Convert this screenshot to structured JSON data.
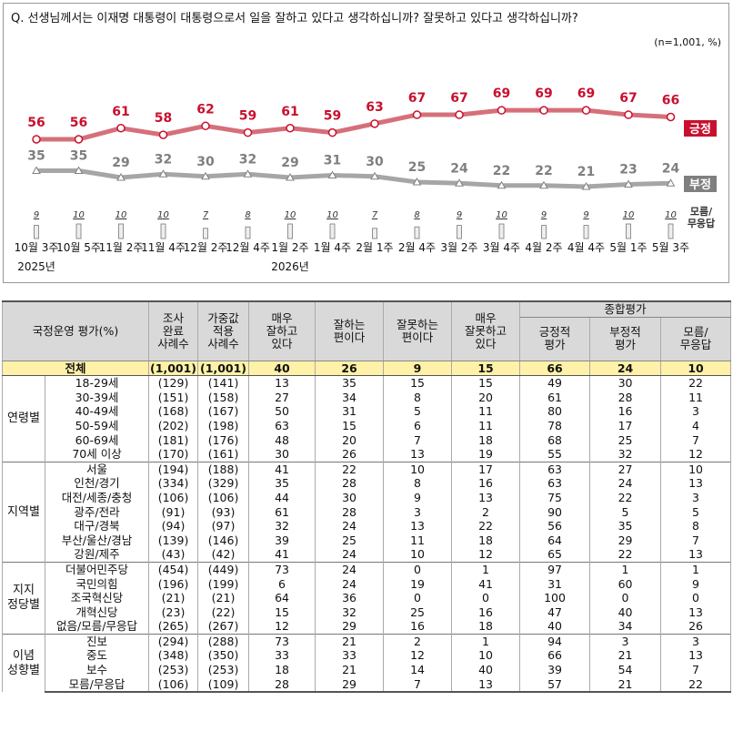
{
  "question": "Q. 선생님께서는 이재명 대통령이 대통령으로서 일을 잘하고 있다고 생각하십니까? 잘못하고 있다고 생각하십니까?",
  "n_note": "(n=1,001,  %)",
  "chart_data": {
    "type": "line",
    "x": [
      "10월 3주",
      "10월 5주",
      "11월 2주",
      "11월 4주",
      "12월 2주",
      "12월 4주",
      "1월 2주",
      "1월 4주",
      "2월 1주",
      "2월 4주",
      "3월 2주",
      "3월 4주",
      "4월 2주",
      "4월 4주",
      "5월 1주",
      "5월 3주"
    ],
    "year_labels": [
      "2025년",
      "2026년"
    ],
    "series": [
      {
        "name": "긍정",
        "color": "#c8102e",
        "values": [
          56,
          56,
          61,
          58,
          62,
          59,
          61,
          59,
          63,
          67,
          67,
          69,
          69,
          69,
          67,
          66
        ]
      },
      {
        "name": "부정",
        "color": "#8c8c8c",
        "values": [
          35,
          35,
          29,
          32,
          30,
          32,
          29,
          31,
          30,
          25,
          24,
          22,
          22,
          21,
          23,
          24
        ]
      },
      {
        "name": "모름/\n무응답",
        "color": "#999999",
        "values": [
          9,
          10,
          10,
          10,
          7,
          8,
          10,
          10,
          7,
          8,
          9,
          10,
          9,
          9,
          10,
          10
        ]
      }
    ]
  },
  "table": {
    "headers": {
      "title": "국정운영 평가(%)",
      "sample": "조사\n완료\n사례수",
      "weighted": "가중값\n적용\n사례수",
      "very_good": "매우\n잘하고\n있다",
      "good": "잘하는\n편이다",
      "bad": "잘못하는\n편이다",
      "very_bad": "매우\n잘못하고\n있다",
      "overall": "종합평가",
      "positive": "긍정적\n평가",
      "negative": "부정적\n평가",
      "dk": "모름/\n무응답"
    },
    "total": {
      "label": "전체",
      "cells": [
        "(1,001)",
        "(1,001)",
        "40",
        "26",
        "9",
        "15",
        "66",
        "24",
        "10"
      ]
    },
    "groups": [
      {
        "name": "연령별",
        "rows": [
          {
            "label": "18-29세",
            "cells": [
              "(129)",
              "(141)",
              "13",
              "35",
              "15",
              "15",
              "49",
              "30",
              "22"
            ]
          },
          {
            "label": "30-39세",
            "cells": [
              "(151)",
              "(158)",
              "27",
              "34",
              "8",
              "20",
              "61",
              "28",
              "11"
            ]
          },
          {
            "label": "40-49세",
            "cells": [
              "(168)",
              "(167)",
              "50",
              "31",
              "5",
              "11",
              "80",
              "16",
              "3"
            ]
          },
          {
            "label": "50-59세",
            "cells": [
              "(202)",
              "(198)",
              "63",
              "15",
              "6",
              "11",
              "78",
              "17",
              "4"
            ]
          },
          {
            "label": "60-69세",
            "cells": [
              "(181)",
              "(176)",
              "48",
              "20",
              "7",
              "18",
              "68",
              "25",
              "7"
            ]
          },
          {
            "label": "70세 이상",
            "cells": [
              "(170)",
              "(161)",
              "30",
              "26",
              "13",
              "19",
              "55",
              "32",
              "12"
            ]
          }
        ]
      },
      {
        "name": "지역별",
        "rows": [
          {
            "label": "서울",
            "cells": [
              "(194)",
              "(188)",
              "41",
              "22",
              "10",
              "17",
              "63",
              "27",
              "10"
            ]
          },
          {
            "label": "인천/경기",
            "cells": [
              "(334)",
              "(329)",
              "35",
              "28",
              "8",
              "16",
              "63",
              "24",
              "13"
            ]
          },
          {
            "label": "대전/세종/충청",
            "cells": [
              "(106)",
              "(106)",
              "44",
              "30",
              "9",
              "13",
              "75",
              "22",
              "3"
            ]
          },
          {
            "label": "광주/전라",
            "cells": [
              "(91)",
              "(93)",
              "61",
              "28",
              "3",
              "2",
              "90",
              "5",
              "5"
            ]
          },
          {
            "label": "대구/경북",
            "cells": [
              "(94)",
              "(97)",
              "32",
              "24",
              "13",
              "22",
              "56",
              "35",
              "8"
            ]
          },
          {
            "label": "부산/울산/경남",
            "cells": [
              "(139)",
              "(146)",
              "39",
              "25",
              "11",
              "18",
              "64",
              "29",
              "7"
            ]
          },
          {
            "label": "강원/제주",
            "cells": [
              "(43)",
              "(42)",
              "41",
              "24",
              "10",
              "12",
              "65",
              "22",
              "13"
            ]
          }
        ]
      },
      {
        "name": "지지\n정당별",
        "rows": [
          {
            "label": "더불어민주당",
            "cells": [
              "(454)",
              "(449)",
              "73",
              "24",
              "0",
              "1",
              "97",
              "1",
              "1"
            ]
          },
          {
            "label": "국민의힘",
            "cells": [
              "(196)",
              "(199)",
              "6",
              "24",
              "19",
              "41",
              "31",
              "60",
              "9"
            ]
          },
          {
            "label": "조국혁신당",
            "cells": [
              "(21)",
              "(21)",
              "64",
              "36",
              "0",
              "0",
              "100",
              "0",
              "0"
            ]
          },
          {
            "label": "개혁신당",
            "cells": [
              "(23)",
              "(22)",
              "15",
              "32",
              "25",
              "16",
              "47",
              "40",
              "13"
            ]
          },
          {
            "label": "없음/모름/무응답",
            "cells": [
              "(265)",
              "(267)",
              "12",
              "29",
              "16",
              "18",
              "40",
              "34",
              "26"
            ]
          }
        ]
      },
      {
        "name": "이념\n성향별",
        "rows": [
          {
            "label": "진보",
            "cells": [
              "(294)",
              "(288)",
              "73",
              "21",
              "2",
              "1",
              "94",
              "3",
              "3"
            ]
          },
          {
            "label": "중도",
            "cells": [
              "(348)",
              "(350)",
              "33",
              "33",
              "12",
              "10",
              "66",
              "21",
              "13"
            ]
          },
          {
            "label": "보수",
            "cells": [
              "(253)",
              "(253)",
              "18",
              "21",
              "14",
              "40",
              "39",
              "54",
              "7"
            ]
          },
          {
            "label": "모름/무응답",
            "cells": [
              "(106)",
              "(109)",
              "28",
              "29",
              "7",
              "13",
              "57",
              "21",
              "22"
            ]
          }
        ]
      }
    ]
  }
}
